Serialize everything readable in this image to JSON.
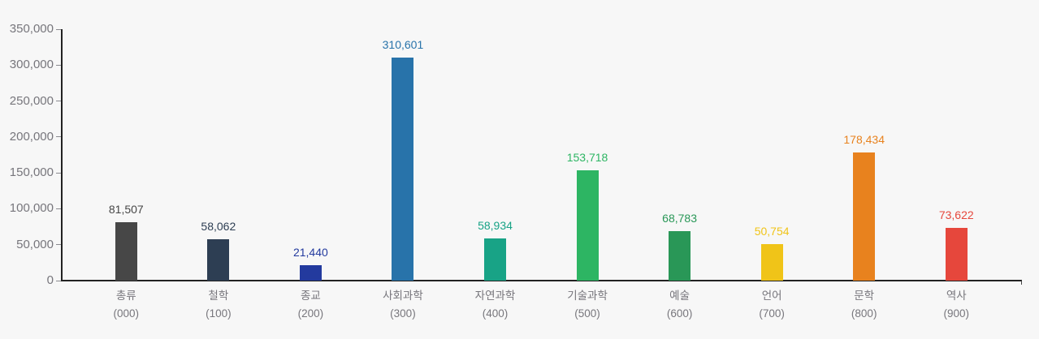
{
  "chart_data": {
    "type": "bar",
    "title": "",
    "xlabel": "",
    "ylabel": "",
    "legend": "none",
    "grid": false,
    "background": "#f7f7f7",
    "axis_color": "#222222",
    "tick_color": "#8a8a8f",
    "axis_label_color": "#77767c",
    "ylim": [
      0,
      350000
    ],
    "y_ticks": [
      0,
      50000,
      100000,
      150000,
      200000,
      250000,
      300000,
      350000
    ],
    "y_tick_labels": [
      "0",
      "50,000",
      "100,000",
      "150,000",
      "200,000",
      "250,000",
      "300,000",
      "350,000"
    ],
    "categories": [
      "총류",
      "철학",
      "종교",
      "사회과학",
      "자연과학",
      "기술과학",
      "예술",
      "언어",
      "문학",
      "역사"
    ],
    "category_codes": [
      "(000)",
      "(100)",
      "(200)",
      "(300)",
      "(400)",
      "(500)",
      "(600)",
      "(700)",
      "(800)",
      "(900)"
    ],
    "values": [
      81507,
      58062,
      21440,
      310601,
      58934,
      153718,
      68783,
      50754,
      178434,
      73622
    ],
    "value_labels": [
      "81,507",
      "58,062",
      "21,440",
      "310,601",
      "58,934",
      "153,718",
      "68,783",
      "50,754",
      "178,434",
      "73,622"
    ],
    "bar_colors": [
      "#474747",
      "#2d3e53",
      "#233a9e",
      "#2873aa",
      "#18a386",
      "#2db563",
      "#299757",
      "#f0c418",
      "#e8821e",
      "#e6473c"
    ]
  }
}
